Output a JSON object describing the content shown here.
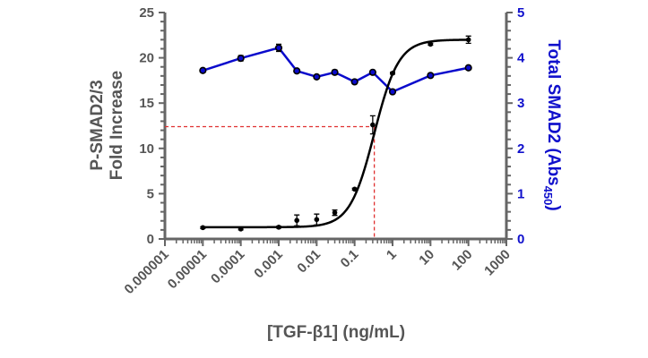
{
  "chart_data": {
    "type": "line",
    "xscale": "log",
    "xlabel": "[TGF-β1] (ng/mL)",
    "ylabel_lines": [
      "P-SMAD2/3",
      "Fold Increase"
    ],
    "y2label_main": "Total SMAD2  (Abs",
    "y2label_sub": "450",
    "y2label_end": ")",
    "xlim": [
      1e-06,
      1000
    ],
    "ylim": [
      0,
      25
    ],
    "y2lim": [
      0,
      5
    ],
    "x_ticks": [
      "0.000001",
      "0.00001",
      "0.0001",
      "0.001",
      "0.01",
      "0.1",
      "1",
      "10",
      "100",
      "1000"
    ],
    "y_ticks": [
      "0",
      "5",
      "10",
      "15",
      "20",
      "25"
    ],
    "y2_ticks": [
      "0",
      "1",
      "2",
      "3",
      "4",
      "5"
    ],
    "x": [
      1e-05,
      0.0001,
      0.001,
      0.003,
      0.01,
      0.03,
      0.1,
      0.3,
      1,
      10,
      100
    ],
    "series": [
      {
        "name": "P-SMAD2/3 Fold Increase",
        "axis": "left",
        "color": "#000000",
        "values": [
          1.25,
          1.1,
          1.3,
          2.05,
          2.15,
          2.9,
          5.5,
          12.6,
          18.3,
          21.5,
          22.0
        ],
        "errors": [
          0.1,
          0.1,
          0.1,
          0.6,
          0.6,
          0.3,
          0.1,
          1.0,
          0.1,
          0.1,
          0.4
        ],
        "fit": {
          "model": "4PL",
          "bottom": 1.3,
          "top": 22.0,
          "ec50": 0.33,
          "hill": 1.35
        }
      },
      {
        "name": "Total SMAD2 (Abs450)",
        "axis": "right",
        "color": "#0a0acc",
        "values": [
          3.72,
          3.99,
          4.22,
          3.71,
          3.58,
          3.68,
          3.47,
          3.68,
          3.25,
          3.61,
          3.78
        ],
        "errors": [
          0.03,
          0.06,
          0.08,
          0.03,
          0.03,
          0.05,
          0.03,
          0.03,
          0.03,
          0.03,
          0.03
        ]
      }
    ],
    "annotation": {
      "type": "ec50-dashed-guide",
      "x": 0.33,
      "y": 12.4,
      "color": "#e03030"
    },
    "grid": false,
    "legend": "none"
  }
}
